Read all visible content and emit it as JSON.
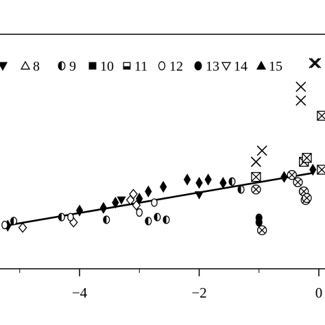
{
  "chart_data": {
    "type": "scatter",
    "title": "",
    "xlabel": "",
    "ylabel": "",
    "xlim": [
      -5.3,
      0.15
    ],
    "ylim": [
      -2.5,
      2.5
    ],
    "x_ticks": [
      -4,
      -2,
      0
    ],
    "x_tick_labels": [
      "−4",
      "−2",
      "0"
    ],
    "grid": false,
    "legend": {
      "placement": "top",
      "entries": [
        {
          "label": "",
          "symbol": "down-triangle-filled"
        },
        {
          "label": "8",
          "symbol": "up-triangle-open"
        },
        {
          "label": "9",
          "symbol": "half-circle"
        },
        {
          "label": "10",
          "symbol": "square-filled"
        },
        {
          "label": "11",
          "symbol": "square-open"
        },
        {
          "label": "12",
          "symbol": "circle-open"
        },
        {
          "label": "13",
          "symbol": "circle-filled"
        },
        {
          "label": "14",
          "symbol": "down-triangle-open"
        },
        {
          "label": "15",
          "symbol": "up-triangle-filled"
        }
      ]
    },
    "fit_line": {
      "x": [
        -5.3,
        -0.1
      ],
      "y": [
        -0.98,
        -0.17
      ]
    },
    "series": [
      {
        "symbol": "diamond-filled",
        "points": [
          [
            -5.2,
            -0.97
          ],
          [
            -4.0,
            -0.74
          ],
          [
            -3.6,
            -0.7
          ],
          [
            -3.4,
            -0.62
          ],
          [
            -3.0,
            -0.56
          ],
          [
            -2.85,
            -0.45
          ],
          [
            -2.6,
            -0.38
          ],
          [
            -2.2,
            -0.27
          ],
          [
            -2.0,
            -0.32
          ],
          [
            -1.85,
            -0.27
          ],
          [
            -1.6,
            -0.32
          ],
          [
            -0.58,
            -0.23
          ],
          [
            -0.1,
            -0.12
          ]
        ]
      },
      {
        "symbol": "diamond-open",
        "points": [
          [
            -4.95,
            -1.0
          ],
          [
            -4.1,
            -0.92
          ],
          [
            -3.05,
            -0.66
          ],
          [
            -3.15,
            -0.58
          ],
          [
            -3.1,
            -0.49
          ]
        ]
      },
      {
        "symbol": "half-circle",
        "points": [
          [
            -5.1,
            -0.9
          ],
          [
            -4.3,
            -0.84
          ],
          [
            -3.55,
            -0.88
          ],
          [
            -2.85,
            -0.9
          ],
          [
            -2.7,
            -0.84
          ],
          [
            -2.55,
            -0.88
          ],
          [
            -1.45,
            -0.3
          ],
          [
            -1.3,
            -0.42
          ]
        ]
      },
      {
        "symbol": "circle-open",
        "points": [
          [
            -5.25,
            -0.96
          ],
          [
            -4.15,
            -0.84
          ],
          [
            -3.0,
            -0.77
          ],
          [
            -2.75,
            -0.62
          ],
          [
            -0.28,
            -0.45
          ]
        ]
      },
      {
        "symbol": "down-triangle-filled",
        "points": [
          [
            -3.3,
            -0.58
          ],
          [
            -2.0,
            -0.5
          ]
        ]
      },
      {
        "symbol": "x",
        "points": [
          [
            -1.05,
            0.0
          ],
          [
            -0.95,
            0.17
          ],
          [
            -0.3,
            1.14
          ],
          [
            -0.3,
            0.93
          ],
          [
            -0.05,
            1.5
          ],
          [
            -0.08,
            1.5
          ]
        ]
      },
      {
        "symbol": "circle-x",
        "points": [
          [
            -1.05,
            -0.42
          ],
          [
            -0.95,
            -1.04
          ],
          [
            -0.35,
            -0.31
          ],
          [
            -0.25,
            -0.45
          ],
          [
            -0.22,
            -0.58
          ],
          [
            -0.45,
            -0.2
          ],
          [
            -0.2,
            -0.55
          ]
        ]
      },
      {
        "symbol": "square-x",
        "points": [
          [
            -1.05,
            -0.23
          ],
          [
            -0.25,
            0.0
          ],
          [
            -0.2,
            0.06
          ],
          [
            0.05,
            0.7
          ],
          [
            0.05,
            -0.12
          ]
        ]
      },
      {
        "symbol": "circle-filled",
        "points": [
          [
            -1.0,
            -0.85
          ],
          [
            -1.0,
            -0.92
          ]
        ]
      }
    ]
  }
}
